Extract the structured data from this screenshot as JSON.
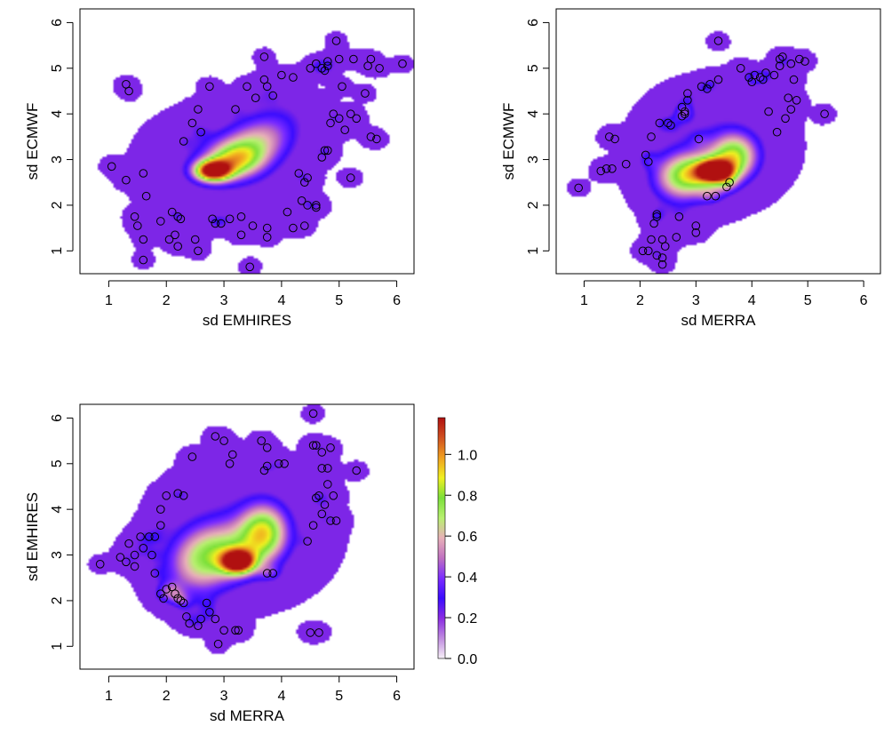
{
  "figure": {
    "colorbar": {
      "ticks": [
        0.0,
        0.2,
        0.4,
        0.6,
        0.8,
        1.0
      ],
      "tick_labels": [
        "0.0",
        "0.2",
        "0.4",
        "0.6",
        "0.8",
        "1.0"
      ],
      "range": [
        0.0,
        1.18
      ],
      "colors": [
        "#f7f0f7",
        "#c08ce0",
        "#8a2be2",
        "#3a0cff",
        "#7b2cff",
        "#c070c0",
        "#e8b0b8",
        "#b8f070",
        "#7ce03a",
        "#f0f020",
        "#f0a020",
        "#d05020",
        "#b01010"
      ]
    }
  },
  "chart_data": [
    {
      "type": "scatter",
      "xlabel": "sd EMHIRES",
      "ylabel": "sd ECMWF",
      "xlim": [
        0.5,
        6.3
      ],
      "ylim": [
        0.5,
        6.3
      ],
      "x_ticks": [
        1,
        2,
        3,
        4,
        5,
        6
      ],
      "y_ticks": [
        1,
        2,
        3,
        4,
        5,
        6
      ],
      "density_blobs": [
        {
          "x": 2.8,
          "y": 2.75,
          "sx": 0.22,
          "sy": 0.16,
          "w": 1.05
        },
        {
          "x": 3.2,
          "y": 3.0,
          "sx": 0.35,
          "sy": 0.28,
          "w": 0.6
        },
        {
          "x": 3.6,
          "y": 3.4,
          "sx": 0.4,
          "sy": 0.35,
          "w": 0.35
        },
        {
          "x": 3.0,
          "y": 2.9,
          "sx": 0.8,
          "sy": 0.7,
          "w": 0.25
        },
        {
          "x": 4.0,
          "y": 3.9,
          "sx": 0.45,
          "sy": 0.45,
          "w": 0.2
        }
      ],
      "points": [
        [
          1.05,
          2.85
        ],
        [
          1.3,
          2.55
        ],
        [
          1.3,
          4.65
        ],
        [
          1.35,
          4.5
        ],
        [
          1.45,
          1.75
        ],
        [
          1.5,
          1.55
        ],
        [
          1.6,
          1.25
        ],
        [
          1.6,
          0.8
        ],
        [
          1.6,
          2.7
        ],
        [
          1.65,
          2.2
        ],
        [
          1.9,
          1.65
        ],
        [
          2.05,
          1.25
        ],
        [
          2.1,
          1.85
        ],
        [
          2.15,
          1.35
        ],
        [
          2.2,
          1.75
        ],
        [
          2.2,
          1.1
        ],
        [
          2.25,
          1.7
        ],
        [
          2.3,
          3.4
        ],
        [
          2.45,
          3.8
        ],
        [
          2.5,
          1.25
        ],
        [
          2.55,
          4.1
        ],
        [
          2.55,
          1.0
        ],
        [
          2.6,
          3.6
        ],
        [
          2.75,
          4.6
        ],
        [
          2.8,
          1.7
        ],
        [
          2.85,
          1.6
        ],
        [
          2.95,
          1.6
        ],
        [
          3.1,
          1.7
        ],
        [
          3.2,
          4.1
        ],
        [
          3.3,
          1.75
        ],
        [
          3.3,
          1.35
        ],
        [
          3.4,
          4.6
        ],
        [
          3.45,
          0.65
        ],
        [
          3.5,
          1.55
        ],
        [
          3.55,
          4.35
        ],
        [
          3.7,
          4.75
        ],
        [
          3.7,
          5.25
        ],
        [
          3.75,
          1.5
        ],
        [
          3.75,
          1.3
        ],
        [
          3.75,
          4.6
        ],
        [
          3.85,
          4.4
        ],
        [
          4.0,
          4.85
        ],
        [
          4.1,
          1.85
        ],
        [
          4.2,
          4.8
        ],
        [
          4.2,
          1.5
        ],
        [
          4.3,
          2.7
        ],
        [
          4.35,
          2.1
        ],
        [
          4.4,
          1.55
        ],
        [
          4.4,
          2.5
        ],
        [
          4.45,
          2.6
        ],
        [
          4.45,
          2.0
        ],
        [
          4.5,
          5.0
        ],
        [
          4.6,
          5.1
        ],
        [
          4.6,
          2.0
        ],
        [
          4.6,
          1.95
        ],
        [
          4.7,
          3.05
        ],
        [
          4.7,
          5.0
        ],
        [
          4.75,
          4.95
        ],
        [
          4.8,
          5.05
        ],
        [
          4.8,
          5.15
        ],
        [
          4.85,
          3.8
        ],
        [
          4.9,
          4.0
        ],
        [
          4.95,
          5.6
        ],
        [
          5.0,
          3.9
        ],
        [
          5.0,
          5.2
        ],
        [
          5.05,
          4.6
        ],
        [
          5.1,
          3.65
        ],
        [
          5.2,
          4.0
        ],
        [
          5.2,
          2.6
        ],
        [
          5.25,
          5.2
        ],
        [
          5.3,
          3.9
        ],
        [
          5.45,
          4.45
        ],
        [
          5.5,
          5.05
        ],
        [
          5.55,
          5.2
        ],
        [
          5.55,
          3.5
        ],
        [
          5.65,
          3.45
        ],
        [
          5.7,
          5.0
        ],
        [
          6.1,
          5.1
        ],
        [
          4.75,
          3.2
        ],
        [
          4.8,
          3.2
        ]
      ]
    },
    {
      "type": "scatter",
      "xlabel": "sd MERRA",
      "ylabel": "sd ECMWF",
      "xlim": [
        0.5,
        6.3
      ],
      "ylim": [
        0.5,
        6.3
      ],
      "x_ticks": [
        1,
        2,
        3,
        4,
        5,
        6
      ],
      "y_ticks": [
        1,
        2,
        3,
        4,
        5,
        6
      ],
      "density_blobs": [
        {
          "x": 3.35,
          "y": 2.75,
          "sx": 0.2,
          "sy": 0.15,
          "w": 1.0
        },
        {
          "x": 3.7,
          "y": 3.1,
          "sx": 0.3,
          "sy": 0.35,
          "w": 0.6
        },
        {
          "x": 3.1,
          "y": 2.7,
          "sx": 0.45,
          "sy": 0.3,
          "w": 0.5
        },
        {
          "x": 2.7,
          "y": 2.5,
          "sx": 0.4,
          "sy": 0.45,
          "w": 0.4
        },
        {
          "x": 3.3,
          "y": 3.3,
          "sx": 0.8,
          "sy": 0.8,
          "w": 0.22
        }
      ],
      "points": [
        [
          0.9,
          2.38
        ],
        [
          1.3,
          2.75
        ],
        [
          1.4,
          2.8
        ],
        [
          1.45,
          3.5
        ],
        [
          1.5,
          2.8
        ],
        [
          1.55,
          3.45
        ],
        [
          1.75,
          2.9
        ],
        [
          2.05,
          1.0
        ],
        [
          2.1,
          3.1
        ],
        [
          2.15,
          1.0
        ],
        [
          2.15,
          2.95
        ],
        [
          2.2,
          1.25
        ],
        [
          2.2,
          3.5
        ],
        [
          2.25,
          1.6
        ],
        [
          2.3,
          0.9
        ],
        [
          2.3,
          1.75
        ],
        [
          2.3,
          1.8
        ],
        [
          2.35,
          3.8
        ],
        [
          2.4,
          0.85
        ],
        [
          2.4,
          1.25
        ],
        [
          2.4,
          0.7
        ],
        [
          2.45,
          1.1
        ],
        [
          2.5,
          3.8
        ],
        [
          2.55,
          3.75
        ],
        [
          2.65,
          1.3
        ],
        [
          2.7,
          1.75
        ],
        [
          2.75,
          3.95
        ],
        [
          2.75,
          4.15
        ],
        [
          2.8,
          4.0
        ],
        [
          2.8,
          4.05
        ],
        [
          2.85,
          4.3
        ],
        [
          2.85,
          4.45
        ],
        [
          3.0,
          1.4
        ],
        [
          3.0,
          1.55
        ],
        [
          3.05,
          3.45
        ],
        [
          3.1,
          4.6
        ],
        [
          3.2,
          2.2
        ],
        [
          3.2,
          4.55
        ],
        [
          3.25,
          4.65
        ],
        [
          3.35,
          2.2
        ],
        [
          3.4,
          4.75
        ],
        [
          3.4,
          5.6
        ],
        [
          3.55,
          2.4
        ],
        [
          3.6,
          2.5
        ],
        [
          3.8,
          5.0
        ],
        [
          3.95,
          4.8
        ],
        [
          4.0,
          4.7
        ],
        [
          4.05,
          4.85
        ],
        [
          4.15,
          4.8
        ],
        [
          4.2,
          4.75
        ],
        [
          4.25,
          4.9
        ],
        [
          4.3,
          4.05
        ],
        [
          4.4,
          4.85
        ],
        [
          4.45,
          3.6
        ],
        [
          4.5,
          5.05
        ],
        [
          4.5,
          5.2
        ],
        [
          4.55,
          5.25
        ],
        [
          4.6,
          3.9
        ],
        [
          4.65,
          4.35
        ],
        [
          4.7,
          4.1
        ],
        [
          4.7,
          5.1
        ],
        [
          4.75,
          4.75
        ],
        [
          4.8,
          4.3
        ],
        [
          4.85,
          5.2
        ],
        [
          4.95,
          5.15
        ],
        [
          5.3,
          4.0
        ]
      ]
    },
    {
      "type": "scatter",
      "xlabel": "sd MERRA",
      "ylabel": "sd EMHIRES",
      "xlim": [
        0.5,
        6.3
      ],
      "ylim": [
        0.5,
        6.3
      ],
      "x_ticks": [
        1,
        2,
        3,
        4,
        5,
        6
      ],
      "y_ticks": [
        1,
        2,
        3,
        4,
        5,
        6
      ],
      "density_blobs": [
        {
          "x": 3.25,
          "y": 2.85,
          "sx": 0.2,
          "sy": 0.18,
          "w": 1.0
        },
        {
          "x": 3.7,
          "y": 3.5,
          "sx": 0.3,
          "sy": 0.45,
          "w": 0.65
        },
        {
          "x": 2.9,
          "y": 3.1,
          "sx": 0.5,
          "sy": 0.45,
          "w": 0.45
        },
        {
          "x": 2.5,
          "y": 2.6,
          "sx": 0.45,
          "sy": 0.5,
          "w": 0.35
        },
        {
          "x": 3.3,
          "y": 3.5,
          "sx": 0.9,
          "sy": 0.9,
          "w": 0.22
        }
      ],
      "points": [
        [
          0.85,
          2.8
        ],
        [
          1.2,
          2.95
        ],
        [
          1.3,
          2.85
        ],
        [
          1.35,
          3.25
        ],
        [
          1.45,
          3.0
        ],
        [
          1.45,
          2.75
        ],
        [
          1.55,
          3.4
        ],
        [
          1.6,
          3.15
        ],
        [
          1.7,
          3.4
        ],
        [
          1.75,
          3.0
        ],
        [
          1.8,
          2.6
        ],
        [
          1.8,
          3.4
        ],
        [
          1.9,
          3.65
        ],
        [
          1.9,
          4.0
        ],
        [
          1.9,
          2.15
        ],
        [
          1.95,
          2.05
        ],
        [
          2.0,
          4.3
        ],
        [
          2.0,
          2.25
        ],
        [
          2.1,
          2.3
        ],
        [
          2.15,
          2.15
        ],
        [
          2.2,
          4.35
        ],
        [
          2.2,
          2.05
        ],
        [
          2.25,
          2.0
        ],
        [
          2.3,
          4.3
        ],
        [
          2.3,
          1.95
        ],
        [
          2.35,
          1.65
        ],
        [
          2.4,
          1.5
        ],
        [
          2.45,
          5.15
        ],
        [
          2.55,
          1.45
        ],
        [
          2.6,
          1.6
        ],
        [
          2.7,
          1.95
        ],
        [
          2.75,
          1.75
        ],
        [
          2.85,
          1.6
        ],
        [
          2.85,
          5.6
        ],
        [
          2.9,
          1.05
        ],
        [
          3.0,
          5.5
        ],
        [
          3.0,
          1.35
        ],
        [
          3.1,
          5.0
        ],
        [
          3.15,
          5.2
        ],
        [
          3.2,
          1.35
        ],
        [
          3.25,
          1.35
        ],
        [
          3.65,
          5.5
        ],
        [
          3.7,
          4.85
        ],
        [
          3.75,
          2.6
        ],
        [
          3.75,
          4.95
        ],
        [
          3.75,
          5.35
        ],
        [
          3.85,
          2.6
        ],
        [
          3.95,
          5.0
        ],
        [
          4.05,
          5.0
        ],
        [
          4.45,
          3.3
        ],
        [
          4.5,
          1.3
        ],
        [
          4.55,
          3.65
        ],
        [
          4.55,
          6.1
        ],
        [
          4.6,
          5.4
        ],
        [
          4.6,
          4.25
        ],
        [
          4.65,
          4.3
        ],
        [
          4.65,
          1.3
        ],
        [
          4.7,
          3.9
        ],
        [
          4.7,
          5.25
        ],
        [
          4.75,
          4.1
        ],
        [
          4.8,
          4.55
        ],
        [
          4.8,
          4.9
        ],
        [
          4.85,
          5.35
        ],
        [
          4.85,
          3.75
        ],
        [
          4.9,
          4.3
        ],
        [
          4.95,
          3.75
        ],
        [
          5.3,
          4.85
        ],
        [
          4.55,
          5.4
        ],
        [
          4.7,
          4.9
        ]
      ]
    }
  ]
}
